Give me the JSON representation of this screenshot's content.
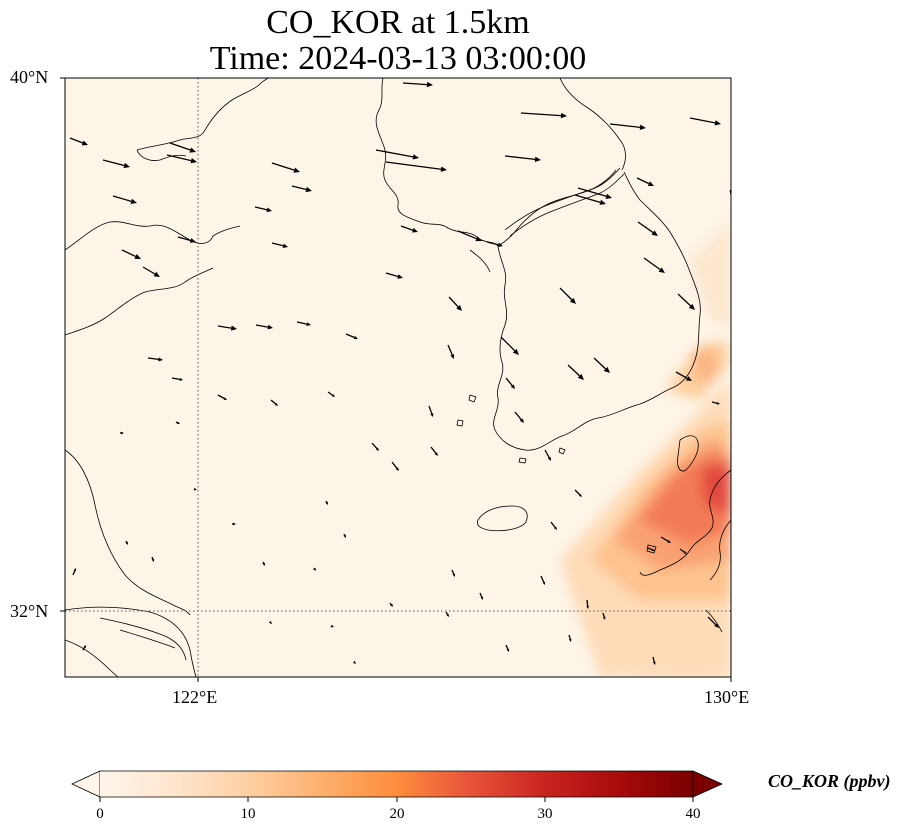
{
  "title": {
    "line1": "CO_KOR at 1.5km",
    "line2": "Time: 2024-03-13 03:00:00"
  },
  "map": {
    "variable": "CO_KOR",
    "level": "1.5km",
    "extent": {
      "lon_min": 120,
      "lon_max": 130,
      "lat_min": 31,
      "lat_max": 40
    },
    "gridlines": {
      "lons": [
        122
      ],
      "lats": [
        32
      ],
      "style": "dotted"
    },
    "ticks": {
      "lat": [
        {
          "value": 40,
          "label": "40°N"
        },
        {
          "value": 32,
          "label": "32°N"
        }
      ],
      "lon": [
        {
          "value": 122,
          "label": "122°E"
        },
        {
          "value": 130,
          "label": "130°E"
        }
      ]
    },
    "colors": {
      "background": "#fdf5e8",
      "coast": "#000000",
      "vectors": "#000000"
    }
  },
  "colorbar": {
    "label": "CO_KOR (ppbv)",
    "min": 0,
    "max": 40,
    "extend": "both",
    "ticks": [
      0,
      10,
      20,
      30,
      40
    ],
    "tick_labels": [
      "0",
      "10",
      "20",
      "30",
      "40"
    ],
    "colormap": [
      "#fff5eb",
      "#fee6ce",
      "#fdd0a2",
      "#fdae6b",
      "#fd8d3c",
      "#f16913",
      "#d94801",
      "#a63603",
      "#7f2704"
    ]
  }
}
